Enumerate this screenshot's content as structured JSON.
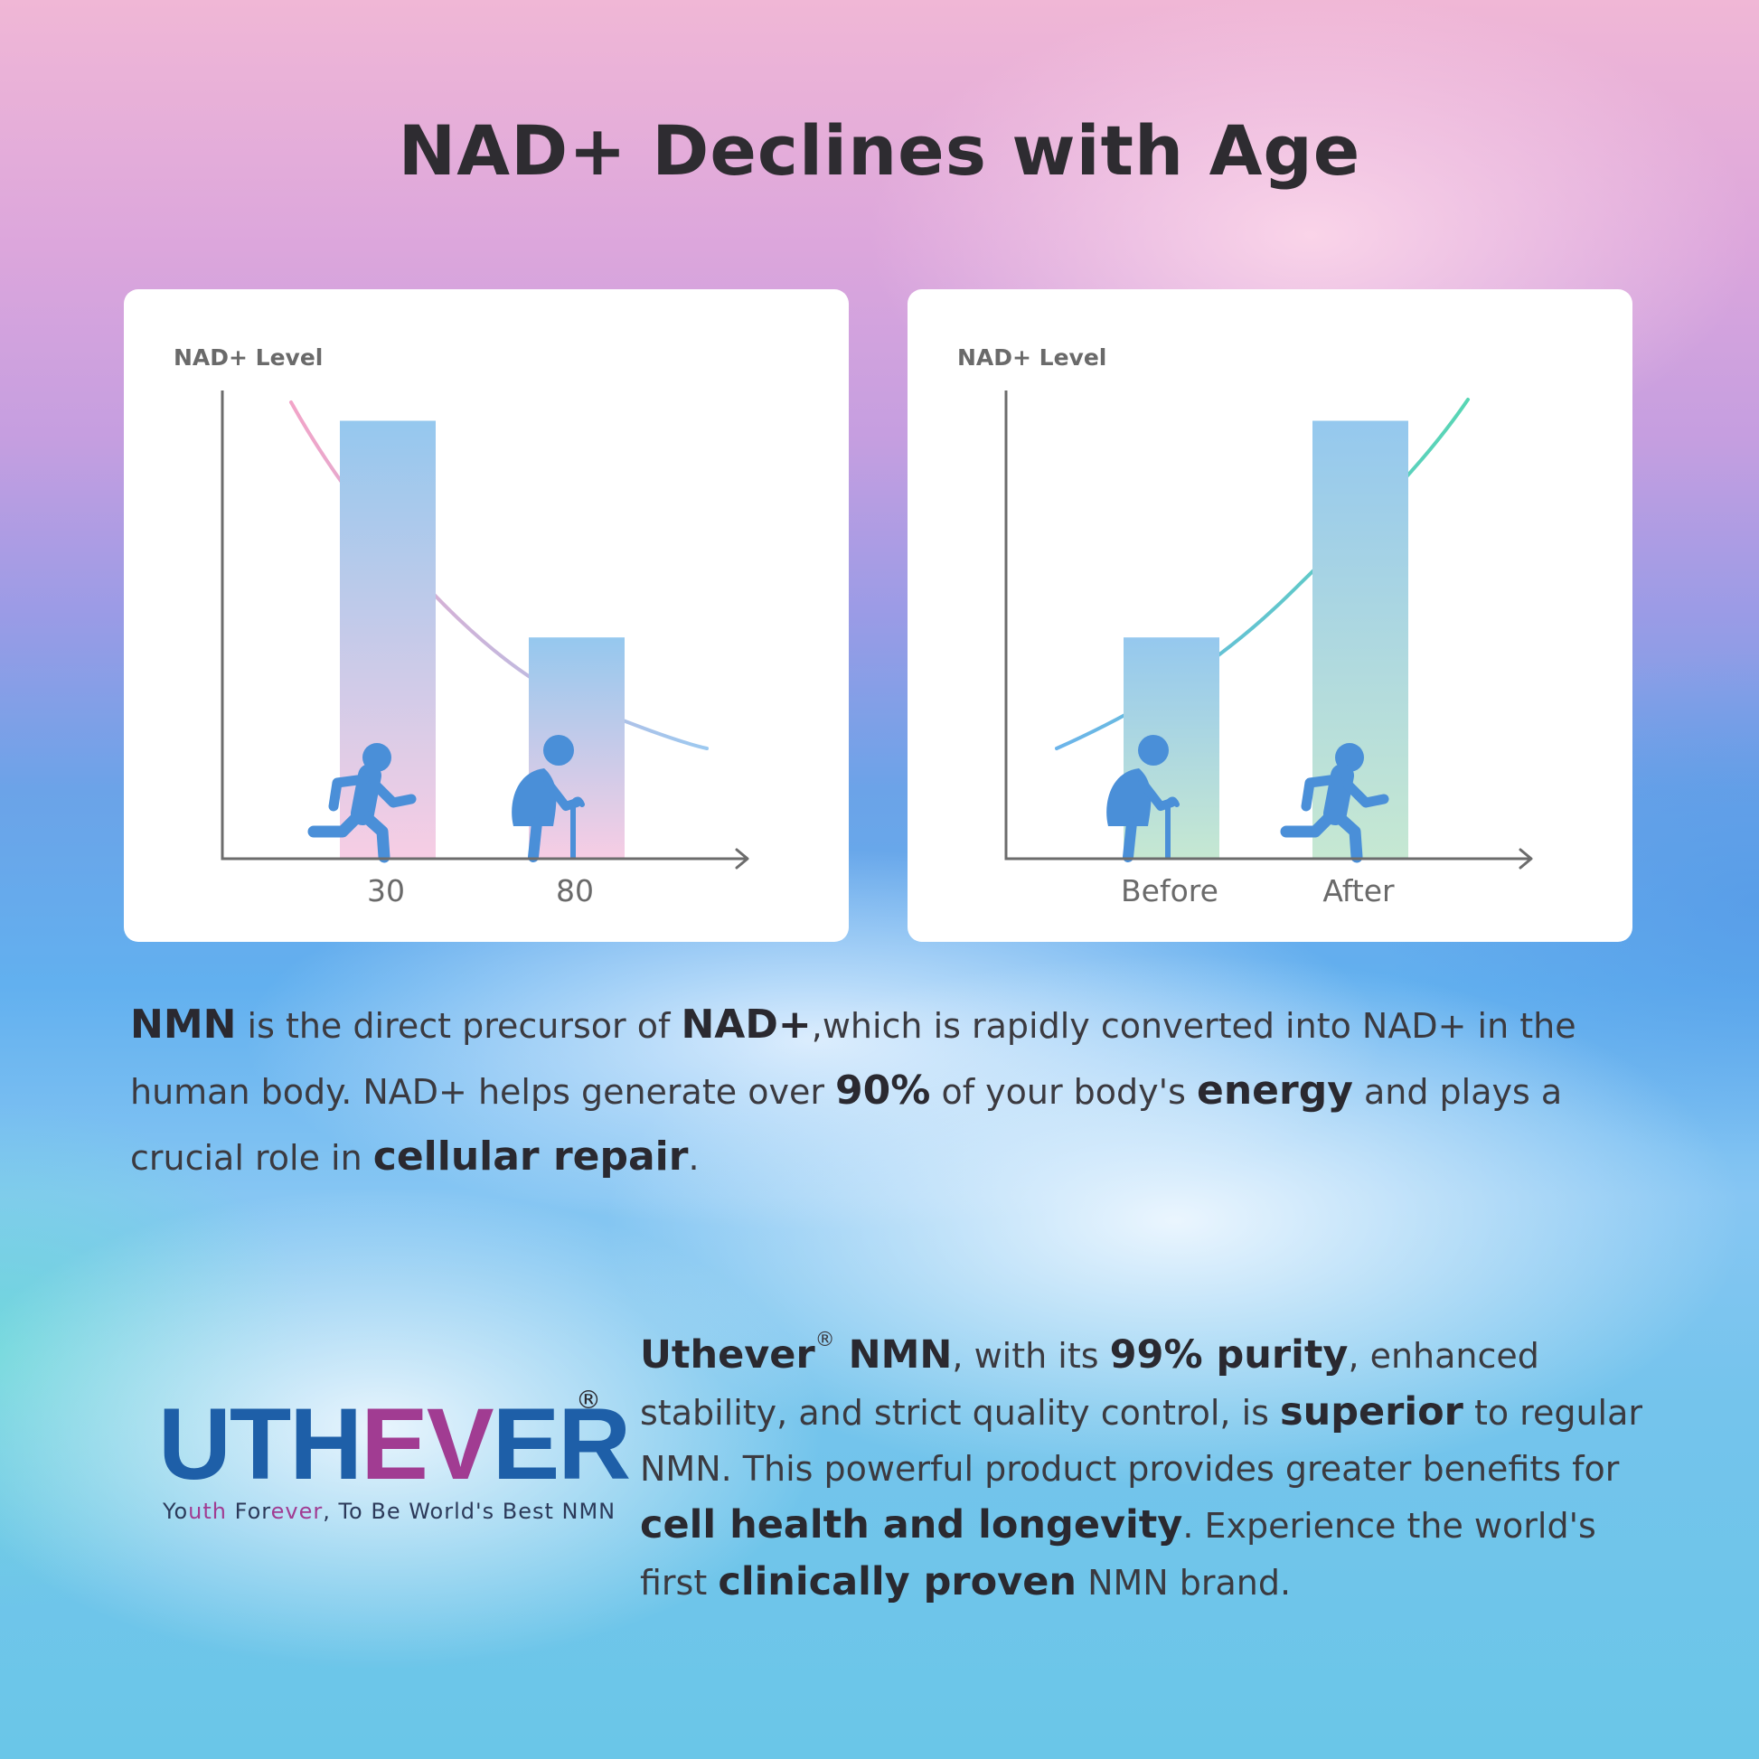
{
  "page": {
    "title": "NAD+ Declines with Age"
  },
  "colors": {
    "bar_top": "#95c8ee",
    "bar_bottom_left": "#f7cde4",
    "bar_bottom_right": "#c6e8d2",
    "figure": "#4a8fd8",
    "axis": "#6c6c6c",
    "brand_blue": "#1e5fa8",
    "brand_purple": "#a13c92"
  },
  "chart_data": [
    {
      "type": "bar",
      "ylabel": "NAD+ Level",
      "categories": [
        "30",
        "80"
      ],
      "values": [
        95,
        48
      ],
      "ylim": [
        0,
        100
      ],
      "icons": [
        "running-person-icon",
        "elderly-person-with-cane-icon"
      ],
      "trend": {
        "direction": "decreasing",
        "color_start": "#f2a4c8",
        "color_end": "#9cc9f0"
      },
      "grid": false
    },
    {
      "type": "bar",
      "ylabel": "NAD+ Level",
      "categories": [
        "Before",
        "After"
      ],
      "values": [
        48,
        95
      ],
      "ylim": [
        0,
        100
      ],
      "icons": [
        "elderly-person-with-cane-icon",
        "running-person-icon"
      ],
      "trend": {
        "direction": "increasing",
        "color_start": "#6cb4ea",
        "color_end": "#58d6b4"
      },
      "grid": false
    }
  ],
  "intro": {
    "parts": [
      {
        "t": "NMN",
        "b": true
      },
      {
        "t": " is the direct precursor of ",
        "b": false
      },
      {
        "t": "NAD+",
        "b": true
      },
      {
        "t": ",which is rapidly converted into NAD+ in the human body. NAD+ helps generate over ",
        "b": false
      },
      {
        "t": "90%",
        "b": true
      },
      {
        "t": " of your body's ",
        "b": false
      },
      {
        "t": "energy",
        "b": true
      },
      {
        "t": " and plays a crucial role in ",
        "b": false
      },
      {
        "t": "cellular repair",
        "b": true
      },
      {
        "t": ".",
        "b": false
      }
    ]
  },
  "logo": {
    "word_a": "UTH",
    "word_b": "EV",
    "word_c": "ER",
    "registered": "®",
    "tagline_a": "Yo",
    "tagline_b": "uth",
    "tagline_c": " For",
    "tagline_d": "ever",
    "tagline_e": ", To Be World's Best NMN"
  },
  "description": {
    "parts": [
      {
        "t": "Uthever",
        "b": true
      },
      {
        "t": "®",
        "sup": true
      },
      {
        "t": " NMN",
        "b": true
      },
      {
        "t": ", with its ",
        "b": false
      },
      {
        "t": "99% purity",
        "b": true
      },
      {
        "t": ", enhanced stability, and strict quality control, is ",
        "b": false
      },
      {
        "t": "superior",
        "b": true
      },
      {
        "t": " to regular NMN. This powerful product provides greater benefits for ",
        "b": false
      },
      {
        "t": "cell health and longevity",
        "b": true
      },
      {
        "t": ". Experience the world's first ",
        "b": false
      },
      {
        "t": "clinically proven",
        "b": true
      },
      {
        "t": " NMN brand.",
        "b": false
      }
    ]
  }
}
